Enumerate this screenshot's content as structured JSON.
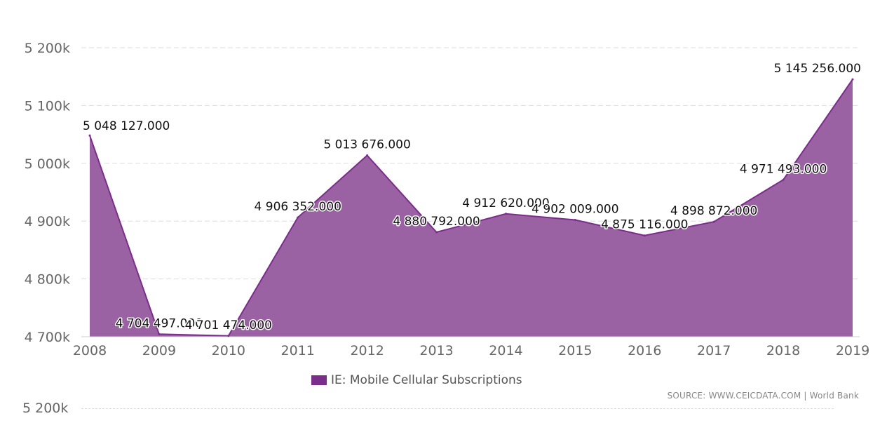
{
  "chart_data": {
    "type": "area",
    "x": [
      "2008",
      "2009",
      "2010",
      "2011",
      "2012",
      "2013",
      "2014",
      "2015",
      "2016",
      "2017",
      "2018",
      "2019"
    ],
    "series": [
      {
        "name": "IE: Mobile Cellular Subscriptions",
        "values": [
          5048127,
          4704497,
          4701474,
          4906352,
          5013676,
          4880792,
          4912620,
          4902009,
          4875116,
          4898872,
          4971493,
          5145256
        ],
        "labels": [
          "5 048 127.000",
          "4 704 497.000",
          "4 701 474.000",
          "4 906 352.000",
          "5 013 676.000",
          "4 880 792.000",
          "4 912 620.000",
          "4 902 009.000",
          "4 875 116.000",
          "4 898 872.000",
          "4 971 493.000",
          "5 145 256.000"
        ],
        "color": "#7b2d8b"
      }
    ],
    "y_ticks": [
      4700000,
      4800000,
      4900000,
      5000000,
      5100000,
      5200000
    ],
    "y_tick_labels": [
      "4 700k",
      "4 800k",
      "4 900k",
      "5 000k",
      "5 100k",
      "5 200k"
    ],
    "ylim": [
      4700000,
      5200000
    ],
    "grid": true,
    "legend_position": "bottom-center",
    "fill_color": "#9b62a3",
    "line_color": "#7b2d8b"
  },
  "legend": {
    "label": "IE: Mobile Cellular Subscriptions",
    "color": "#7b2d8b"
  },
  "source_text": "SOURCE: WWW.CEICDATA.COM | World Bank",
  "ghost_axis": {
    "label": "5 200k"
  }
}
